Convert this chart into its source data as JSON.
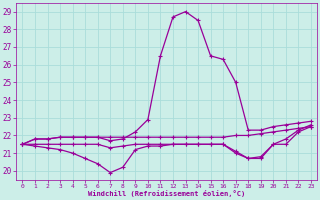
{
  "title": "",
  "xlabel": "Windchill (Refroidissement éolien,°C)",
  "ylabel": "",
  "xlim": [
    -0.5,
    23.5
  ],
  "ylim": [
    19.5,
    29.5
  ],
  "yticks": [
    20,
    21,
    22,
    23,
    24,
    25,
    26,
    27,
    28,
    29
  ],
  "xticks": [
    0,
    1,
    2,
    3,
    4,
    5,
    6,
    7,
    8,
    9,
    10,
    11,
    12,
    13,
    14,
    15,
    16,
    17,
    18,
    19,
    20,
    21,
    22,
    23
  ],
  "background_color": "#cceee8",
  "grid_color": "#aaddda",
  "line_color": "#990099",
  "lines": [
    {
      "x": [
        0,
        1,
        2,
        3,
        4,
        5,
        6,
        7,
        8,
        9,
        10,
        11,
        12,
        13,
        14,
        15,
        16,
        17,
        18,
        19,
        20,
        21,
        22,
        23
      ],
      "y": [
        21.5,
        21.8,
        21.8,
        21.9,
        21.9,
        21.9,
        21.9,
        21.7,
        21.8,
        22.2,
        22.9,
        26.5,
        28.7,
        29.0,
        28.5,
        26.5,
        26.3,
        25.0,
        22.3,
        22.3,
        22.5,
        22.6,
        22.7,
        22.8
      ]
    },
    {
      "x": [
        0,
        1,
        2,
        3,
        4,
        5,
        6,
        7,
        8,
        9,
        10,
        11,
        12,
        13,
        14,
        15,
        16,
        17,
        18,
        19,
        20,
        21,
        22,
        23
      ],
      "y": [
        21.5,
        21.4,
        21.3,
        21.2,
        21.0,
        20.7,
        20.4,
        19.9,
        20.2,
        21.2,
        21.4,
        21.4,
        21.5,
        21.5,
        21.5,
        21.5,
        21.5,
        21.0,
        20.7,
        20.7,
        21.5,
        21.8,
        22.3,
        22.6
      ]
    },
    {
      "x": [
        0,
        1,
        2,
        3,
        4,
        5,
        6,
        7,
        8,
        9,
        10,
        11,
        12,
        13,
        14,
        15,
        16,
        17,
        18,
        19,
        20,
        21,
        22,
        23
      ],
      "y": [
        21.5,
        21.8,
        21.8,
        21.9,
        21.9,
        21.9,
        21.9,
        21.9,
        21.9,
        21.9,
        21.9,
        21.9,
        21.9,
        21.9,
        21.9,
        21.9,
        21.9,
        22.0,
        22.0,
        22.1,
        22.2,
        22.3,
        22.4,
        22.5
      ]
    },
    {
      "x": [
        0,
        1,
        2,
        3,
        4,
        5,
        6,
        7,
        8,
        9,
        10,
        11,
        12,
        13,
        14,
        15,
        16,
        17,
        18,
        19,
        20,
        21,
        22,
        23
      ],
      "y": [
        21.5,
        21.5,
        21.5,
        21.5,
        21.5,
        21.5,
        21.5,
        21.3,
        21.4,
        21.5,
        21.5,
        21.5,
        21.5,
        21.5,
        21.5,
        21.5,
        21.5,
        21.1,
        20.7,
        20.8,
        21.5,
        21.5,
        22.2,
        22.5
      ]
    }
  ]
}
